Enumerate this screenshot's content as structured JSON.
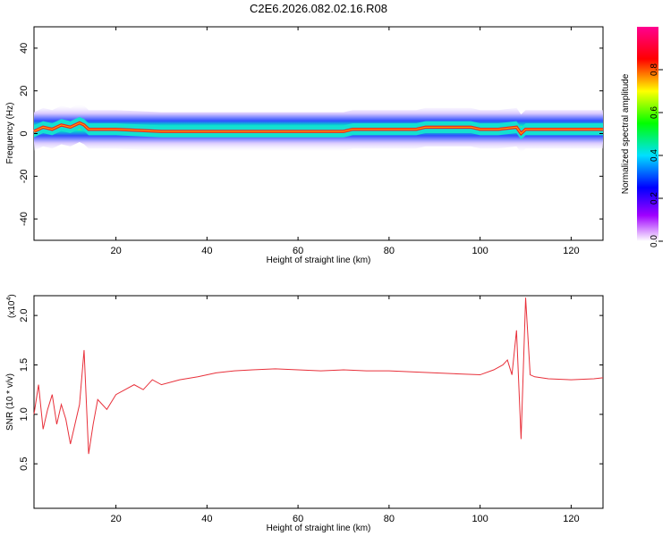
{
  "title": "C2E6.2026.082.02.16.R08",
  "chart_data": [
    {
      "type": "heatmap",
      "xlabel": "Height of straight line (km)",
      "ylabel": "Frequency (Hz)",
      "xlim": [
        2,
        127
      ],
      "ylim": [
        -50,
        50
      ],
      "x_ticks": [
        "20",
        "40",
        "60",
        "80",
        "100",
        "120"
      ],
      "y_ticks": [
        "40",
        "20",
        "0",
        "-20",
        "-40"
      ],
      "colorbar": {
        "label": "Normalized spectral amplitude",
        "range": [
          0.0,
          1.0
        ],
        "ticks": [
          "0.0",
          "0.2",
          "0.4",
          "0.6",
          "0.8"
        ]
      },
      "peak_frequency_trace": {
        "x": [
          2,
          4,
          6,
          8,
          10,
          12,
          13,
          14,
          16,
          20,
          30,
          40,
          50,
          60,
          70,
          72,
          80,
          86,
          88,
          90,
          95,
          98,
          100,
          104,
          108,
          109,
          110,
          112,
          120,
          127
        ],
        "y": [
          1,
          3,
          2,
          4,
          3,
          5,
          4,
          2,
          2,
          2,
          1,
          1,
          1,
          1,
          1,
          2,
          2,
          2,
          3,
          3,
          3,
          3,
          2,
          2,
          3,
          0,
          2,
          2,
          2,
          2
        ]
      },
      "grid": false
    },
    {
      "type": "line",
      "xlabel": "Height of straight line (km)",
      "ylabel": "SNR (10 * v/v)",
      "y_multiplier": "(x10",
      "y_multiplier_exp": "4",
      "y_multiplier_close": ")",
      "xlim": [
        2,
        127
      ],
      "ylim": [
        0.05,
        2.2
      ],
      "x_ticks": [
        "20",
        "40",
        "60",
        "80",
        "100",
        "120"
      ],
      "y_ticks": [
        "0.5",
        "1.0",
        "1.5",
        "2.0"
      ],
      "series": [
        {
          "color": "#e8303a",
          "x": [
            2,
            3,
            4,
            5,
            6,
            7,
            8,
            9,
            10,
            11,
            12,
            13,
            14,
            15,
            16,
            18,
            20,
            22,
            24,
            26,
            28,
            30,
            34,
            38,
            42,
            46,
            50,
            55,
            60,
            65,
            70,
            75,
            80,
            85,
            90,
            95,
            100,
            103,
            105,
            106,
            107,
            108,
            109,
            110,
            111,
            112,
            115,
            120,
            125,
            127
          ],
          "y": [
            1.0,
            1.3,
            0.85,
            1.05,
            1.2,
            0.9,
            1.1,
            0.95,
            0.7,
            0.9,
            1.1,
            1.65,
            0.6,
            0.9,
            1.15,
            1.05,
            1.2,
            1.25,
            1.3,
            1.25,
            1.35,
            1.3,
            1.35,
            1.38,
            1.42,
            1.44,
            1.45,
            1.46,
            1.45,
            1.44,
            1.45,
            1.44,
            1.44,
            1.43,
            1.42,
            1.41,
            1.4,
            1.45,
            1.5,
            1.55,
            1.4,
            1.85,
            0.75,
            2.18,
            1.4,
            1.38,
            1.36,
            1.35,
            1.36,
            1.37
          ]
        }
      ],
      "grid": false
    }
  ]
}
